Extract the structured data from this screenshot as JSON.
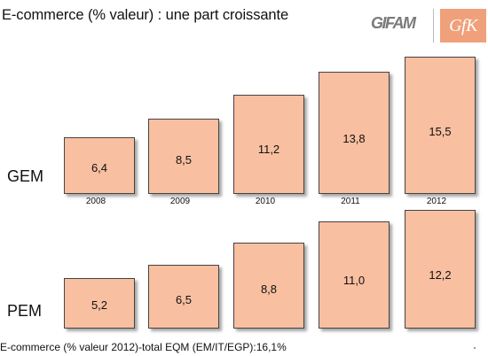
{
  "title": "E-commerce (% valeur) : une part croissante",
  "logos": {
    "left": "GIFAM",
    "right": "GfK"
  },
  "footer": "E-commerce (% valeur 2012)-total EQM (EM/IT/EGP):16,1%",
  "chart_data": [
    {
      "type": "bar",
      "label": "GEM",
      "categories": [
        "2008",
        "2009",
        "2010",
        "2011",
        "2012"
      ],
      "values": [
        6.4,
        8.5,
        11.2,
        13.8,
        15.5
      ],
      "value_labels": [
        "6,4",
        "8,5",
        "11,2",
        "13,8",
        "15,5"
      ],
      "fill": "#f8bfa0"
    },
    {
      "type": "bar",
      "label": "PEM",
      "categories": [
        "2008",
        "2009",
        "2010",
        "2011",
        "2012"
      ],
      "values": [
        5.2,
        6.5,
        8.8,
        11.0,
        12.2
      ],
      "value_labels": [
        "5,2",
        "6,5",
        "8,8",
        "11,0",
        "12,2"
      ],
      "fill": "#f8bfa0"
    }
  ]
}
